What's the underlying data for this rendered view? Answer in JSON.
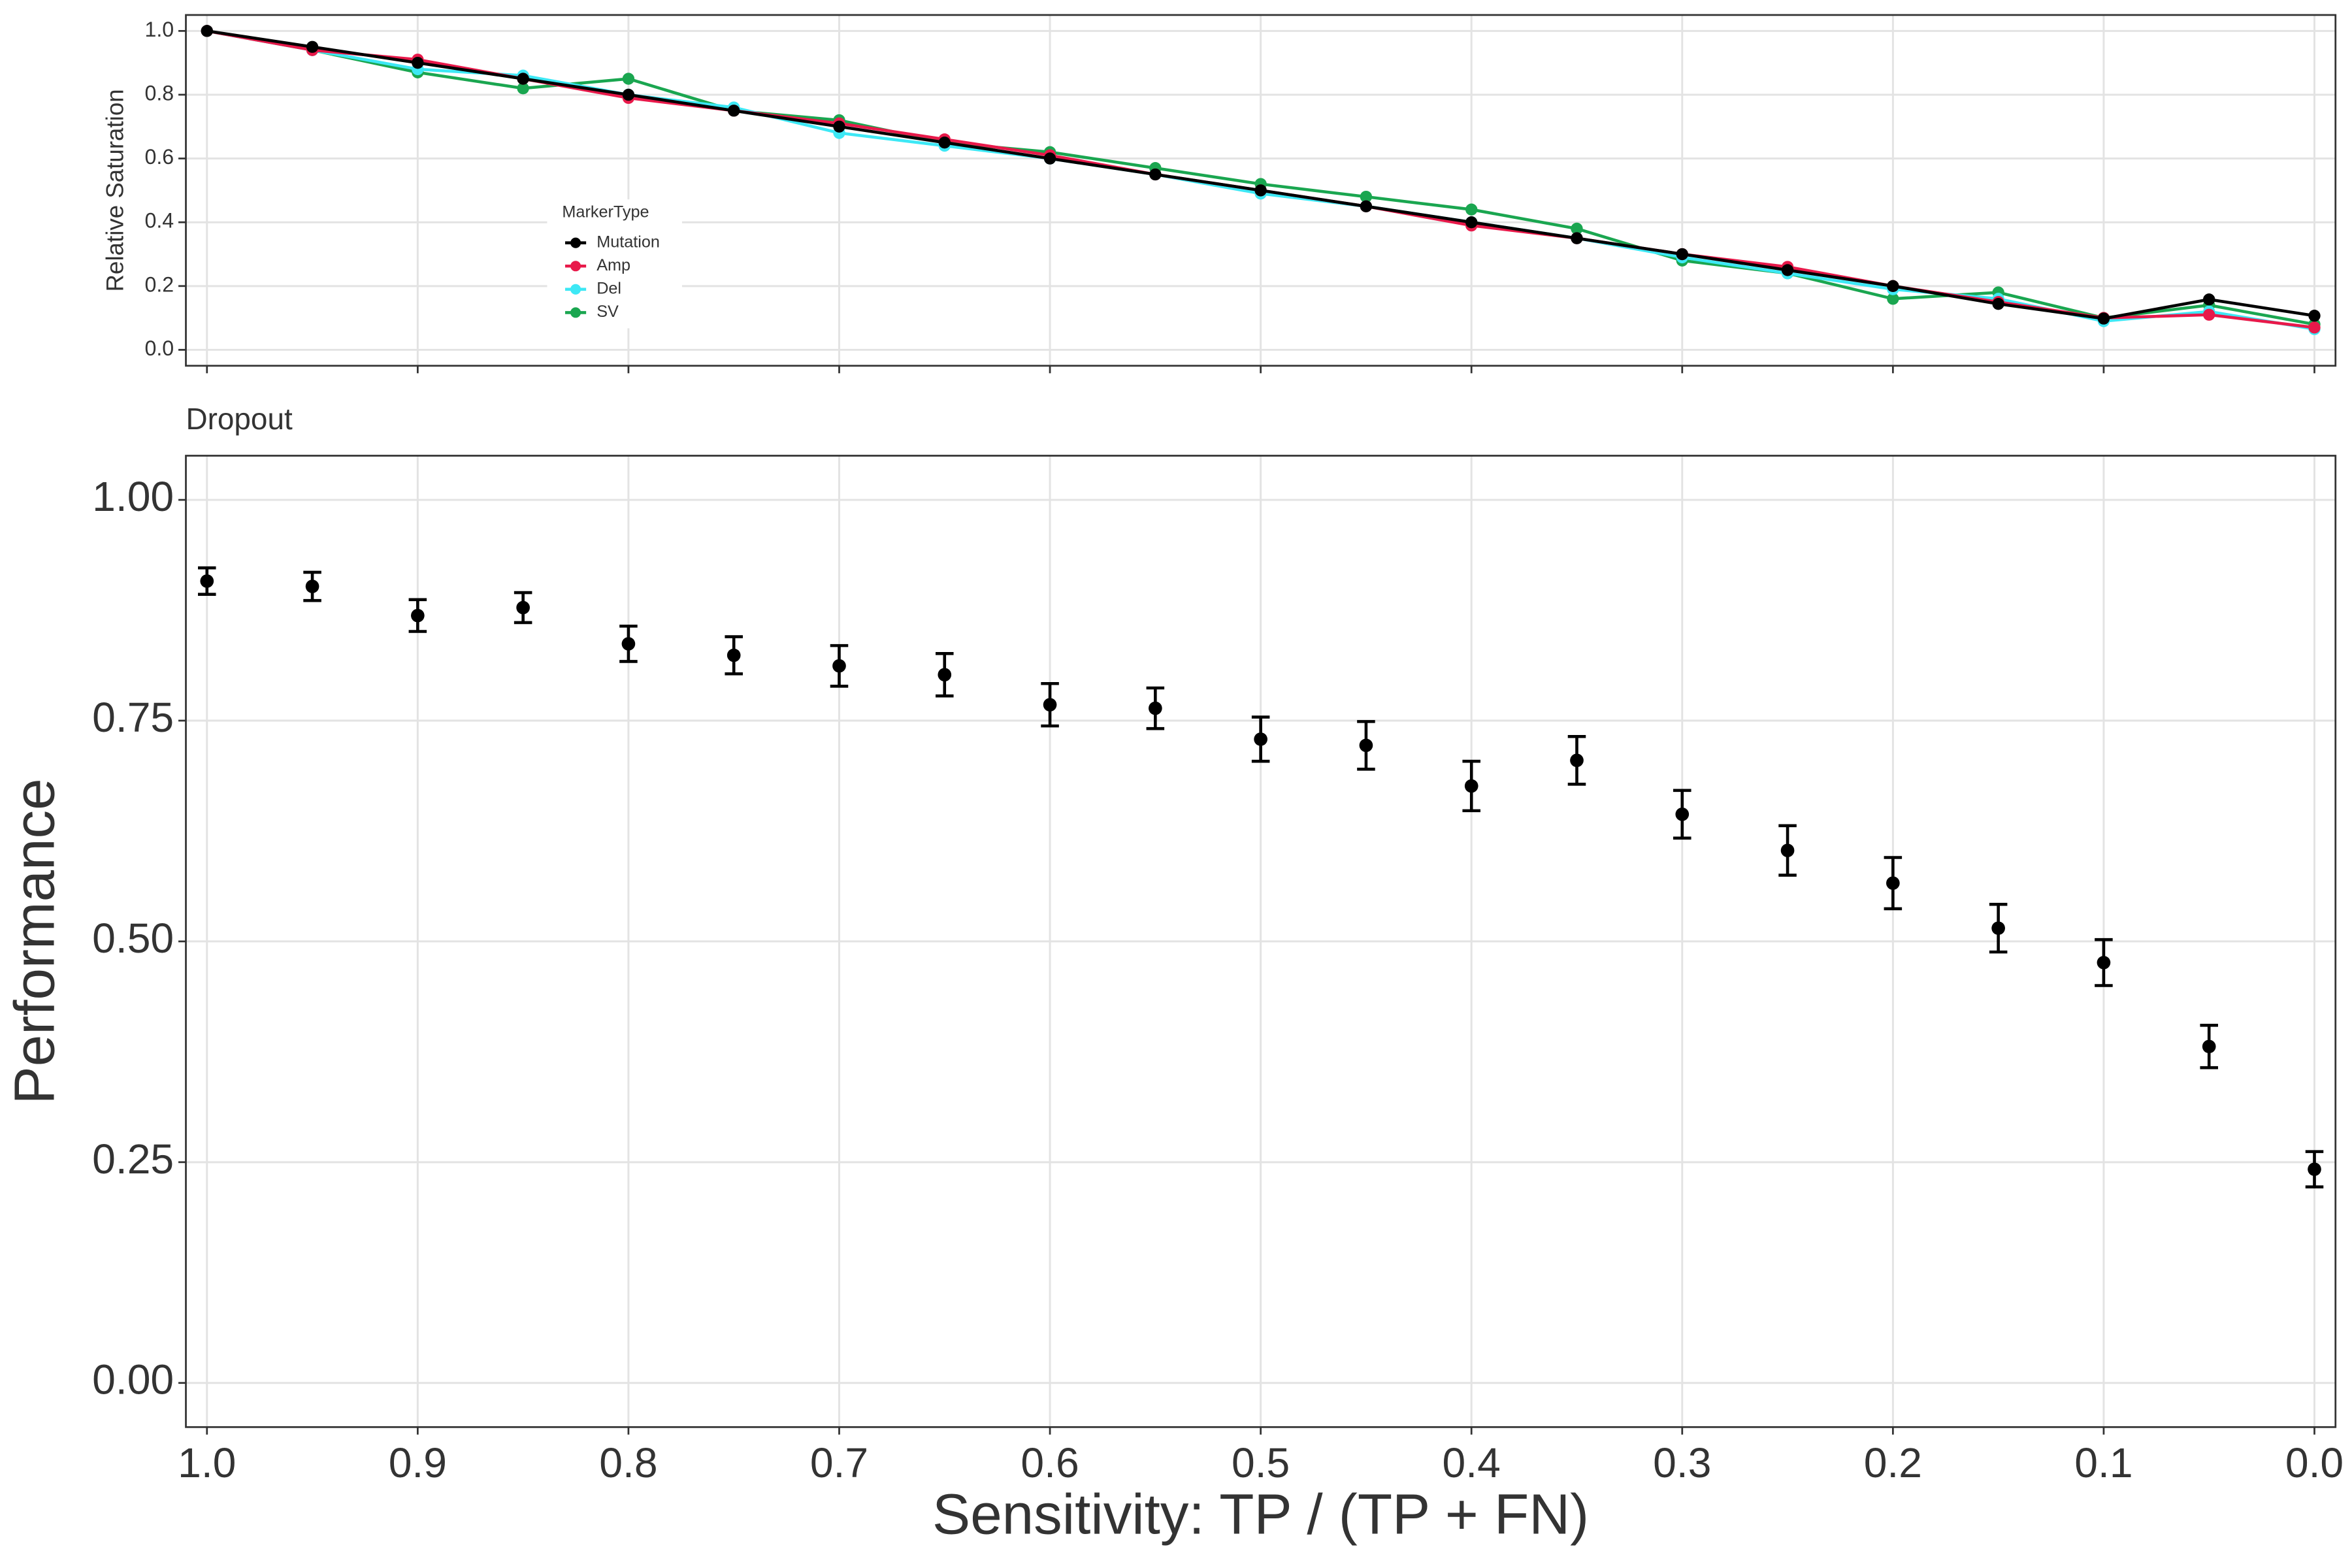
{
  "chart_data": [
    {
      "type": "line",
      "ylabel": "Relative Saturation",
      "x": [
        1.0,
        0.95,
        0.9,
        0.85,
        0.8,
        0.75,
        0.7,
        0.65,
        0.6,
        0.55,
        0.5,
        0.45,
        0.4,
        0.35,
        0.3,
        0.25,
        0.2,
        0.15,
        0.1,
        0.05,
        0.0
      ],
      "xlim": [
        1.01,
        -0.01
      ],
      "xticks": [
        1.0,
        0.9,
        0.8,
        0.7,
        0.6,
        0.5,
        0.4,
        0.3,
        0.2,
        0.1,
        0.0
      ],
      "ylim": [
        -0.05,
        1.05
      ],
      "yticks": [
        {
          "value": 0,
          "label": "0.0"
        },
        0.2,
        0.4,
        0.6,
        0.8,
        {
          "value": 1,
          "label": "1.0"
        }
      ],
      "grid": true,
      "legend_title": "MarkerType",
      "legend": "center-left",
      "series": [
        {
          "name": "Mutation",
          "color": "#000000",
          "values": [
            1.0,
            0.95,
            0.9,
            0.85,
            0.8,
            0.75,
            0.7,
            0.65,
            0.6,
            0.55,
            0.5,
            0.45,
            0.4,
            0.35,
            0.3,
            0.25,
            0.2,
            0.144,
            0.098,
            0.158,
            0.107
          ]
        },
        {
          "name": "Amp",
          "color": "#e8194a",
          "values": [
            1.0,
            0.94,
            0.91,
            0.85,
            0.79,
            0.75,
            0.71,
            0.66,
            0.61,
            0.55,
            0.5,
            0.45,
            0.39,
            0.35,
            0.3,
            0.26,
            0.2,
            0.15,
            0.1,
            0.11,
            0.07
          ]
        },
        {
          "name": "Del",
          "color": "#3de8f5",
          "values": [
            1.0,
            0.94,
            0.88,
            0.86,
            0.8,
            0.76,
            0.68,
            0.64,
            0.6,
            0.55,
            0.49,
            0.45,
            0.4,
            0.35,
            0.29,
            0.24,
            0.19,
            0.16,
            0.09,
            0.12,
            0.065
          ]
        },
        {
          "name": "SV",
          "color": "#1aa650",
          "values": [
            1.0,
            0.94,
            0.87,
            0.82,
            0.85,
            0.75,
            0.72,
            0.65,
            0.62,
            0.57,
            0.52,
            0.48,
            0.44,
            0.38,
            0.28,
            0.24,
            0.16,
            0.18,
            0.1,
            0.14,
            0.08
          ]
        }
      ]
    },
    {
      "type": "errorbar",
      "title": "Dropout",
      "xlabel": "Sensitivity: TP / (TP + FN)",
      "ylabel": "Performance",
      "color": "#000000",
      "x": [
        1.0,
        0.95,
        0.9,
        0.85,
        0.8,
        0.75,
        0.7,
        0.65,
        0.6,
        0.55,
        0.5,
        0.45,
        0.4,
        0.35,
        0.3,
        0.25,
        0.2,
        0.15,
        0.1,
        0.05,
        0.0
      ],
      "values": [
        0.908,
        0.902,
        0.869,
        0.878,
        0.837,
        0.824,
        0.812,
        0.802,
        0.768,
        0.764,
        0.729,
        0.722,
        0.676,
        0.705,
        0.644,
        0.603,
        0.566,
        0.515,
        0.476,
        0.381,
        0.242
      ],
      "errors": [
        0.015,
        0.016,
        0.018,
        0.017,
        0.02,
        0.021,
        0.023,
        0.024,
        0.024,
        0.023,
        0.025,
        0.027,
        0.028,
        0.027,
        0.027,
        0.028,
        0.029,
        0.027,
        0.026,
        0.024,
        0.02
      ],
      "xlim": [
        1.01,
        -0.01
      ],
      "xticks": [
        {
          "value": 1,
          "label": "1.0"
        },
        0.9,
        0.8,
        0.7,
        0.6,
        0.5,
        0.4,
        0.3,
        0.2,
        0.1,
        {
          "value": 0,
          "label": "0.0"
        }
      ],
      "ylim": [
        -0.05,
        1.05
      ],
      "yticks": [
        {
          "value": 0,
          "label": "0.00"
        },
        0.25,
        {
          "value": 0.5,
          "label": "0.50"
        },
        0.75,
        {
          "value": 1,
          "label": "1.00"
        }
      ],
      "grid": true
    }
  ]
}
